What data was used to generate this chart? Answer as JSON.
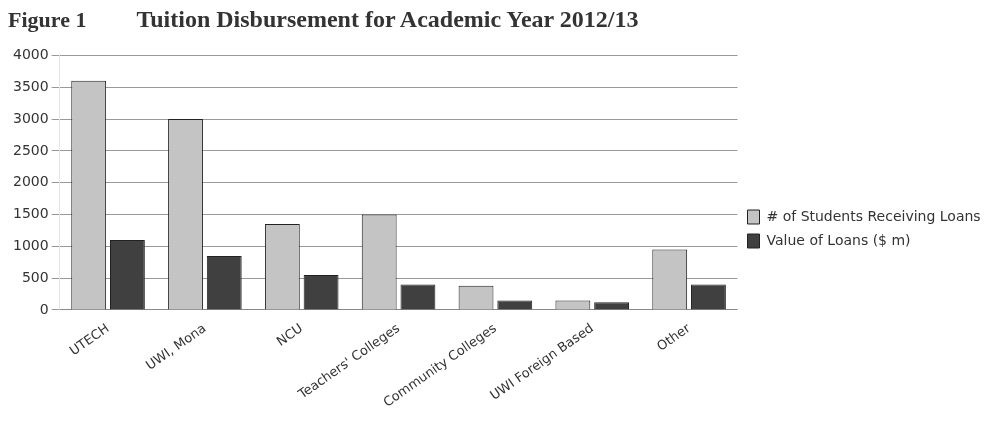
{
  "chart_data": {
    "type": "bar",
    "title": "Tuition Disbursement for Academic Year 2012/13",
    "annotations": [
      "Figure 1"
    ],
    "categories": [
      "UTECH",
      "UWI, Mona",
      "NCU",
      "Teachers' Colleges",
      "Community Colleges",
      "UWI Foreign Based",
      "Other"
    ],
    "series": [
      {
        "name": "# of Students Receiving Loans",
        "color": "#c4c4c4",
        "values": [
          3600,
          3000,
          1350,
          1500,
          380,
          150,
          950
        ]
      },
      {
        "name": "Value of Loans ($ m)",
        "color": "#404040",
        "values": [
          1100,
          850,
          550,
          400,
          150,
          120,
          400
        ]
      }
    ],
    "ylim": [
      0,
      4000
    ],
    "yticks": [
      0,
      500,
      1000,
      1500,
      2000,
      2500,
      3000,
      3500,
      4000
    ],
    "grid": "y",
    "legend": "right"
  }
}
